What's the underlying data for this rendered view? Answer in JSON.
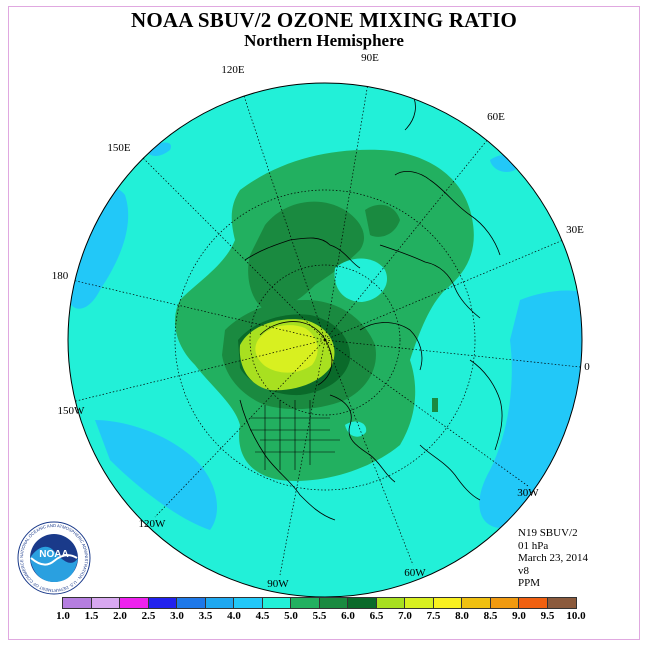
{
  "title": "NOAA SBUV/2 OZONE MIXING RATIO",
  "subtitle": "Northern Hemisphere",
  "longitude_labels": [
    "90E",
    "60E",
    "30E",
    "0",
    "30W",
    "60W",
    "90W",
    "120W",
    "150W",
    "180",
    "150E",
    "120E"
  ],
  "info": {
    "satellite": "N19 SBUV/2",
    "level": "01 hPa",
    "date": "March 23, 2014",
    "version": "v8",
    "units": "PPM"
  },
  "logo": {
    "text": "NOAA",
    "ring_text": "NATIONAL OCEANIC AND ATMOSPHERIC ADMINISTRATION · U.S. DEPARTMENT OF COMMERCE"
  },
  "colorbar": {
    "labels": [
      "1.0",
      "1.5",
      "2.0",
      "2.5",
      "3.0",
      "3.5",
      "4.0",
      "4.5",
      "5.0",
      "5.5",
      "6.0",
      "6.5",
      "7.0",
      "7.5",
      "8.0",
      "8.5",
      "9.0",
      "9.5",
      "10.0"
    ],
    "colors": [
      "#b57ee0",
      "#d8a8f0",
      "#ee22ee",
      "#2222ee",
      "#1e78e8",
      "#1ea8f0",
      "#22c8f8",
      "#22f0d8",
      "#22b060",
      "#1a8a40",
      "#0a6a2a",
      "#a8e020",
      "#d8f020",
      "#f8f020",
      "#f0c010",
      "#f09a10",
      "#f06010",
      "#e81010",
      "#8b5a3c"
    ]
  }
}
